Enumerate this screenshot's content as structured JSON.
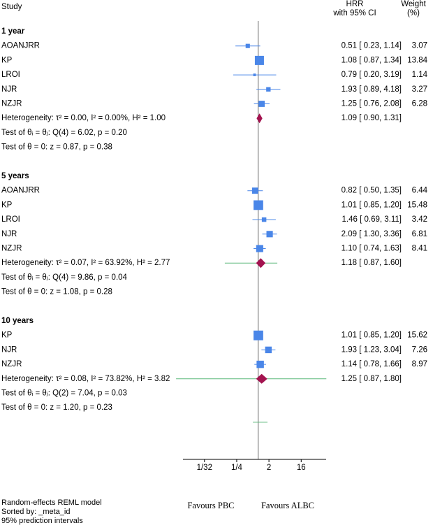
{
  "chart_data": {
    "type": "forest",
    "headers": {
      "study": "Study",
      "effect": [
        "HRR",
        "with 95% CI"
      ],
      "weight": [
        "Weight",
        "(%)"
      ]
    },
    "groups": [
      {
        "name": "1 year",
        "studies": [
          {
            "name": "AOANJRR",
            "hr": 0.51,
            "ci_low": 0.23,
            "ci_high": 1.14,
            "ci_label": "0.51 [ 0.23, 1.14]",
            "weight": 3.07
          },
          {
            "name": "KP",
            "hr": 1.08,
            "ci_low": 0.87,
            "ci_high": 1.34,
            "ci_label": "1.08 [ 0.87, 1.34]",
            "weight": 13.84
          },
          {
            "name": "LROI",
            "hr": 0.79,
            "ci_low": 0.2,
            "ci_high": 3.19,
            "ci_label": "0.79 [ 0.20, 3.19]",
            "weight": 1.14
          },
          {
            "name": "NJR",
            "hr": 1.93,
            "ci_low": 0.89,
            "ci_high": 4.18,
            "ci_label": "1.93 [ 0.89, 4.18]",
            "weight": 3.27
          },
          {
            "name": "NZJR",
            "hr": 1.25,
            "ci_low": 0.76,
            "ci_high": 2.08,
            "ci_label": "1.25 [ 0.76, 2.08]",
            "weight": 6.28
          }
        ],
        "overall": {
          "label": "Heterogeneity: τ² = 0.00, I² = 0.00%, H² = 1.00",
          "hr": 1.09,
          "ci_low": 0.9,
          "ci_high": 1.31,
          "ci_label": "1.09 [ 0.90, 1.31]"
        },
        "tests": [
          "Test of θᵢ = θⱼ: Q(4) = 6.02, p = 0.20",
          "Test of θ = 0: z = 0.87, p = 0.38"
        ]
      },
      {
        "name": "5 years",
        "studies": [
          {
            "name": "AOANJRR",
            "hr": 0.82,
            "ci_low": 0.5,
            "ci_high": 1.35,
            "ci_label": "0.82 [ 0.50, 1.35]",
            "weight": 6.44
          },
          {
            "name": "KP",
            "hr": 1.01,
            "ci_low": 0.85,
            "ci_high": 1.2,
            "ci_label": "1.01 [ 0.85, 1.20]",
            "weight": 15.48
          },
          {
            "name": "LROI",
            "hr": 1.46,
            "ci_low": 0.69,
            "ci_high": 3.11,
            "ci_label": "1.46 [ 0.69, 3.11]",
            "weight": 3.42
          },
          {
            "name": "NJR",
            "hr": 2.09,
            "ci_low": 1.3,
            "ci_high": 3.36,
            "ci_label": "2.09 [ 1.30, 3.36]",
            "weight": 6.81
          },
          {
            "name": "NZJR",
            "hr": 1.1,
            "ci_low": 0.74,
            "ci_high": 1.63,
            "ci_label": "1.10 [ 0.74, 1.63]",
            "weight": 8.41
          }
        ],
        "overall": {
          "label": "Heterogeneity: τ² = 0.07, I² = 63.92%, H² = 2.77",
          "hr": 1.18,
          "ci_low": 0.87,
          "ci_high": 1.6,
          "ci_label": "1.18 [ 0.87, 1.60]",
          "pi": [
            0.116,
            3.43
          ]
        },
        "tests": [
          "Test of θᵢ = θⱼ: Q(4) = 9.86, p = 0.04",
          "Test of θ = 0: z = 1.08, p = 0.28"
        ]
      },
      {
        "name": "10 years",
        "studies": [
          {
            "name": "KP",
            "hr": 1.01,
            "ci_low": 0.85,
            "ci_high": 1.2,
            "ci_label": "1.01 [ 0.85, 1.20]",
            "weight": 15.62
          },
          {
            "name": "NJR",
            "hr": 1.93,
            "ci_low": 1.23,
            "ci_high": 3.04,
            "ci_label": "1.93 [ 1.23, 3.04]",
            "weight": 7.26
          },
          {
            "name": "NZJR",
            "hr": 1.14,
            "ci_low": 0.78,
            "ci_high": 1.66,
            "ci_label": "1.14 [ 0.78, 1.66]",
            "weight": 8.97
          }
        ],
        "overall": {
          "label": "Heterogeneity: τ² = 0.08, I² = 73.82%, H² = 3.82",
          "hr": 1.25,
          "ci_low": 0.87,
          "ci_high": 1.8,
          "ci_label": "1.25 [ 0.87, 1.80]",
          "pi": [
            0.005,
            81
          ]
        },
        "tests": [
          "Test of θᵢ = θⱼ: Q(2) = 7.04, p = 0.03",
          "Test of θ = 0: z = 1.20, p = 0.23"
        ]
      }
    ],
    "extra_pi": [
      0.71,
      1.82
    ],
    "log_scale": true,
    "xlim": [
      0.0078125,
      80
    ],
    "xticks": [
      {
        "value": 0.03125,
        "label": "1/32"
      },
      {
        "value": 0.25,
        "label": "1/4"
      },
      2,
      16
    ],
    "axis_labels": [
      "Favours PBC",
      "Favours ALBC"
    ],
    "notes": [
      "Random-effects REML model",
      "Sorted by: _meta_id",
      "95% prediction intervals"
    ],
    "colors": {
      "study": "#4a86e8",
      "overall": "#a3134f",
      "pi": "#5cb87a",
      "ref": "#666666"
    }
  }
}
